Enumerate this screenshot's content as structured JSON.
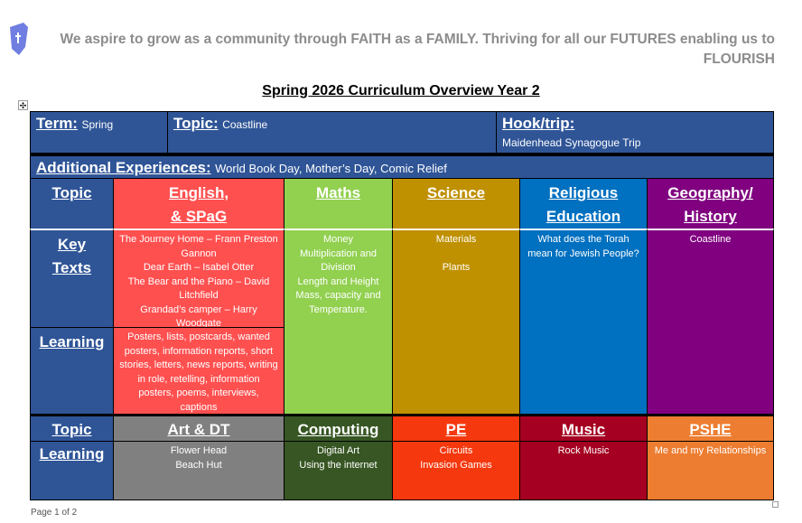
{
  "header": {
    "motto": "We aspire to grow as a community through FAITH as a FAMILY. Thriving for all our FUTURES enabling us to FLOURISH",
    "title": "Spring 2026 Curriculum Overview Year 2"
  },
  "top": {
    "term_label": "Term:",
    "term": "Spring",
    "topic_label": "Topic:",
    "topic": "Coastline",
    "hook_label": "Hook/trip:",
    "hook": "Maidenhead Synagogue Trip",
    "additional_label": "Additional Experiences:",
    "additional": "World Book Day, Mother’s Day, Comic Relief"
  },
  "rows": {
    "topic": "Topic",
    "key1": "Key",
    "key2": "Texts",
    "learning": "Learning",
    "topic2": "Topic",
    "learning2": "Learning"
  },
  "subjects": {
    "english": {
      "title1": "English,",
      "title2": "& SPaG",
      "key_texts": [
        "The Journey Home – Frann Preston Gannon",
        "Dear Earth – Isabel Otter",
        "The Bear and the Piano – David Litchfield",
        "Grandad’s camper – Harry Woodgate"
      ],
      "learning": "Posters, lists, postcards, wanted posters, information reports, short stories, letters, news reports, writing in role, retelling, information posters, poems, interviews, captions"
    },
    "maths": {
      "title": "Maths",
      "items": [
        "Money",
        "Multiplication and Division",
        "Length and Height",
        "Mass, capacity and Temperature."
      ]
    },
    "science": {
      "title": "Science",
      "items": [
        "Materials",
        "Plants"
      ]
    },
    "re": {
      "title1": "Religious",
      "title2": "Education",
      "items": [
        "What does the Torah mean for Jewish People?"
      ]
    },
    "geo": {
      "title": "Geography/ History",
      "items": [
        "Coastline"
      ]
    },
    "art": {
      "title": "Art & DT",
      "items": [
        "Flower Head",
        "Beach Hut"
      ]
    },
    "computing": {
      "title": "Computing",
      "items": [
        "Digital Art",
        "Using the internet"
      ]
    },
    "pe": {
      "title": "PE",
      "items": [
        "Circuits",
        "Invasion Games"
      ]
    },
    "music": {
      "title": "Music",
      "items": [
        "Rock Music"
      ]
    },
    "pshe": {
      "title": "PSHE",
      "items": [
        "Me and my Relationships"
      ]
    }
  },
  "colors": {
    "blue": "#2f5597",
    "english": "#ff5050",
    "maths": "#92d050",
    "science": "#bf9000",
    "re": "#0070c0",
    "geo": "#800080",
    "art": "#808080",
    "computing": "#375623",
    "pe": "#f5380e",
    "music": "#a50021",
    "pshe": "#ed7d31"
  },
  "footer": {
    "page": "Page 1 of 2"
  }
}
